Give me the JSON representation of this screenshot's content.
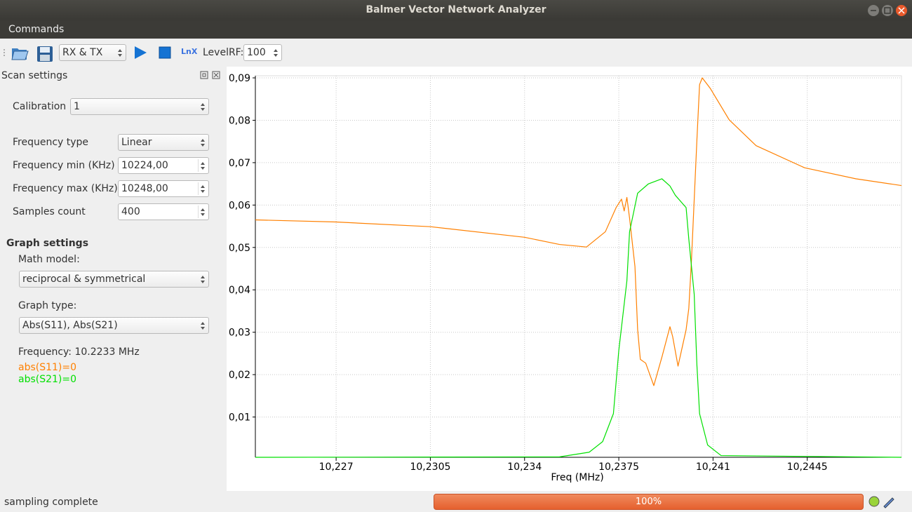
{
  "window": {
    "title": "Balmer Vector Network Analyzer"
  },
  "menu": {
    "commands": "Commands"
  },
  "toolbar": {
    "mode": "RX & TX",
    "lnx": "LnX",
    "level_label": "LevelRF:",
    "level_value": "100"
  },
  "scan_settings": {
    "title": "Scan settings",
    "calibration": {
      "label": "Calibration",
      "value": "1"
    },
    "frequency_type": {
      "label": "Frequency type",
      "value": "Linear"
    },
    "frequency_min": {
      "label": "Frequency min (KHz)",
      "value": "10224,00"
    },
    "frequency_max": {
      "label": "Frequency max (KHz)",
      "value": "10248,00"
    },
    "samples_count": {
      "label": "Samples count",
      "value": "400"
    }
  },
  "graph_settings": {
    "title": "Graph settings",
    "math_model": {
      "label": "Math model:",
      "value": "reciprocal & symmetrical"
    },
    "graph_type": {
      "label": "Graph type:",
      "value": "Abs(S11), Abs(S21)"
    }
  },
  "readout": {
    "frequency": "Frequency: 10.2233 MHz",
    "s11": "abs(S11)=0",
    "s21": "abs(S21)=0"
  },
  "status": {
    "message": "sampling complete",
    "progress": "100%"
  },
  "chart_data": {
    "type": "line",
    "xlabel": "Freq (MHz)",
    "xlim": [
      10.224,
      10.248
    ],
    "ylim": [
      0.0005,
      0.0905
    ],
    "xticks": [
      {
        "value": 10.227,
        "label": "10,227"
      },
      {
        "value": 10.2305,
        "label": "10,2305"
      },
      {
        "value": 10.234,
        "label": "10,234"
      },
      {
        "value": 10.2375,
        "label": "10,2375"
      },
      {
        "value": 10.241,
        "label": "10,241"
      },
      {
        "value": 10.2445,
        "label": "10,2445"
      }
    ],
    "yticks": [
      {
        "value": 0.01,
        "label": "0,01"
      },
      {
        "value": 0.02,
        "label": "0,02"
      },
      {
        "value": 0.03,
        "label": "0,03"
      },
      {
        "value": 0.04,
        "label": "0,04"
      },
      {
        "value": 0.05,
        "label": "0,05"
      },
      {
        "value": 0.06,
        "label": "0,06"
      },
      {
        "value": 0.07,
        "label": "0,07"
      },
      {
        "value": 0.08,
        "label": "0,08"
      },
      {
        "value": 0.09,
        "label": "0,09"
      }
    ],
    "grid": true,
    "series": [
      {
        "color": "#ff8000",
        "x": [
          10.224,
          10.227,
          10.2305,
          10.234,
          10.2353,
          10.2363,
          10.237,
          10.2374,
          10.2376,
          10.2377,
          10.2378,
          10.2379,
          10.2381,
          10.2382,
          10.2383,
          10.2385,
          10.2388,
          10.2391,
          10.2394,
          10.2395,
          10.2397,
          10.24,
          10.2401,
          10.2402,
          10.2404,
          10.2405,
          10.2406,
          10.2409,
          10.2416,
          10.2426,
          10.2444,
          10.2463,
          10.248
        ],
        "values": [
          0.0565,
          0.056,
          0.0549,
          0.0524,
          0.0507,
          0.0501,
          0.0537,
          0.0594,
          0.0614,
          0.0586,
          0.0618,
          0.0569,
          0.0455,
          0.0306,
          0.0236,
          0.0227,
          0.0174,
          0.0241,
          0.0313,
          0.029,
          0.022,
          0.0306,
          0.0356,
          0.0471,
          0.0752,
          0.0884,
          0.09,
          0.0875,
          0.0801,
          0.074,
          0.0688,
          0.0662,
          0.0646
        ]
      },
      {
        "color": "#00e000",
        "x": [
          10.224,
          10.2353,
          10.2364,
          10.2369,
          10.2373,
          10.2375,
          10.2378,
          10.2379,
          10.2382,
          10.2386,
          10.2391,
          10.2394,
          10.2396,
          10.24,
          10.2401,
          10.2403,
          10.2404,
          10.2405,
          10.2408,
          10.2413,
          10.248
        ],
        "values": [
          0.0005,
          0.0006,
          0.0017,
          0.0042,
          0.0108,
          0.0257,
          0.0421,
          0.0537,
          0.0628,
          0.065,
          0.0662,
          0.0645,
          0.0623,
          0.0594,
          0.052,
          0.039,
          0.0224,
          0.0108,
          0.0034,
          0.0009,
          0.0005
        ]
      }
    ]
  }
}
